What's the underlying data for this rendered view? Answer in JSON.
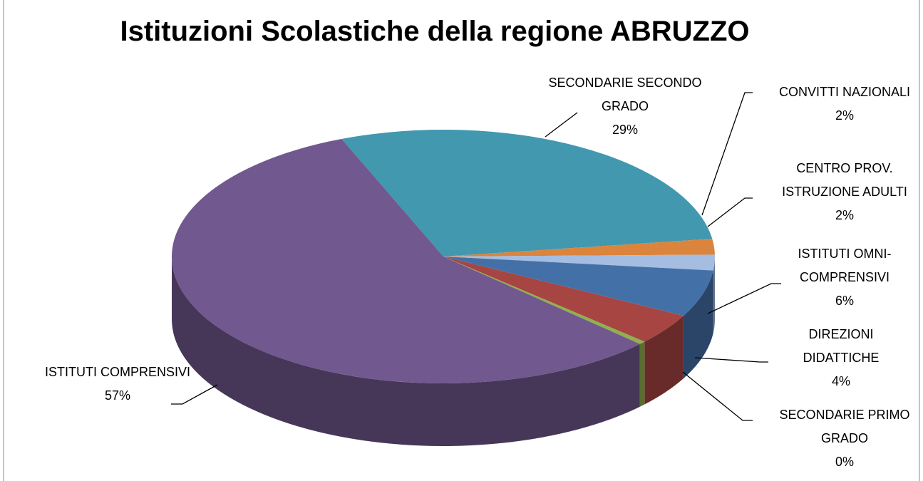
{
  "chart_data": {
    "type": "pie3d",
    "title": "Istituzioni Scolastiche della regione ABRUZZO",
    "categories": [
      "SECONDARIE SECONDO GRADO",
      "CONVITTI NAZIONALI",
      "CENTRO PROV. ISTRUZIONE ADULTI",
      "ISTITUTI OMNI-COMPRENSIVI",
      "DIREZIONI DIDATTICHE",
      "SECONDARIE PRIMO GRADO",
      "ISTITUTI COMPRENSIVI"
    ],
    "values": [
      29,
      2,
      2,
      6,
      4,
      0.4,
      57
    ],
    "value_labels": [
      "29%",
      "2%",
      "2%",
      "6%",
      "4%",
      "0%",
      "57%"
    ],
    "colors": [
      "#4198af",
      "#db843d",
      "#a4bde0",
      "#4470a8",
      "#a74542",
      "#8fb14d",
      "#71588f"
    ]
  }
}
